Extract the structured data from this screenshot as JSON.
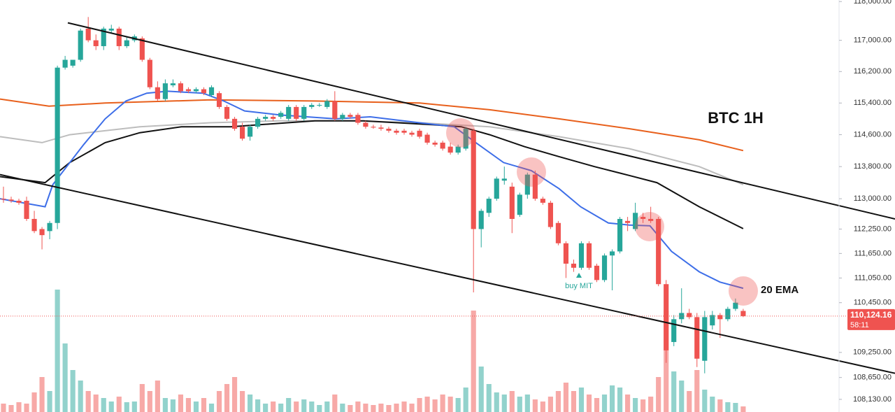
{
  "chart_data": {
    "type": "candlestick",
    "title": "BTC 1H",
    "log_scale": true,
    "ylim": [
      107830,
      118040
    ],
    "xlim": [
      -0.45,
      115.7
    ],
    "yticks": [
      {
        "value": 118000,
        "label": "118,000.00"
      },
      {
        "value": 117000,
        "label": "117,000.00"
      },
      {
        "value": 116200,
        "label": "116,200.00"
      },
      {
        "value": 115400,
        "label": "115,400.00"
      },
      {
        "value": 114600,
        "label": "114,600.00"
      },
      {
        "value": 113800,
        "label": "113,800.00"
      },
      {
        "value": 113000,
        "label": "113,000.00"
      },
      {
        "value": 112250,
        "label": "112,250.00"
      },
      {
        "value": 111650,
        "label": "111,650.00"
      },
      {
        "value": 111050,
        "label": "111,050.00"
      },
      {
        "value": 110450,
        "label": "110,450.00"
      },
      {
        "value": 109250,
        "label": "109,250.00"
      },
      {
        "value": 108650,
        "label": "108,650.00"
      },
      {
        "value": 108130,
        "label": "108,130.00"
      }
    ],
    "up_color": "#26a69a",
    "down_color": "#ef5350",
    "candles": {
      "open": [
        113000,
        112980,
        112950,
        112950,
        112500,
        112250,
        112200,
        112400,
        116300,
        116350,
        116500,
        117300,
        117000,
        116850,
        117250,
        117300,
        116850,
        117000,
        117050,
        116500,
        115800,
        115500,
        115850,
        115900,
        115750,
        115700,
        115750,
        115600,
        115650,
        115300,
        115000,
        114800,
        114550,
        114800,
        115000,
        115050,
        115050,
        115000,
        115300,
        115000,
        115300,
        115350,
        115300,
        115450,
        115000,
        115100,
        115100,
        114900,
        114800,
        114780,
        114750,
        114700,
        114700,
        114650,
        114700,
        114600,
        114400,
        114400,
        114300,
        114150,
        114250,
        114700,
        112250,
        112650,
        113000,
        113450,
        113300,
        112600,
        113100,
        113600,
        113000,
        112900,
        112400,
        111900,
        111400,
        111300,
        111900,
        111350,
        111000,
        111600,
        111700,
        112450,
        112250,
        112550,
        112500,
        112500,
        110900,
        109500,
        110050,
        110200,
        110100,
        109050,
        109900,
        110150,
        110050,
        110300,
        110250
      ],
      "high": [
        113300,
        113050,
        113000,
        113050,
        112700,
        112300,
        112450,
        116350,
        116600,
        116500,
        117300,
        117600,
        117150,
        117350,
        117400,
        117350,
        117100,
        117150,
        117100,
        116550,
        115950,
        116000,
        116000,
        115950,
        115800,
        115800,
        115800,
        115850,
        115700,
        115350,
        115050,
        114900,
        114850,
        115050,
        115100,
        115100,
        115200,
        115350,
        115350,
        115350,
        115400,
        115400,
        115500,
        115700,
        115150,
        115150,
        115150,
        114950,
        114850,
        114850,
        114800,
        114750,
        114750,
        114700,
        114750,
        114650,
        114450,
        114450,
        114400,
        114350,
        114800,
        114750,
        112750,
        113050,
        113550,
        113800,
        113400,
        113150,
        113650,
        113700,
        113050,
        112950,
        112450,
        111950,
        111500,
        111950,
        111950,
        111400,
        111650,
        111750,
        112550,
        112550,
        112900,
        112650,
        112800,
        112550,
        111000,
        110150,
        110800,
        110300,
        110200,
        110250,
        110250,
        110200,
        110350,
        110550,
        110300
      ],
      "low": [
        112900,
        112900,
        112850,
        112450,
        112150,
        111750,
        112000,
        112250,
        116250,
        116300,
        116450,
        116950,
        116750,
        116750,
        117200,
        116750,
        116800,
        116950,
        116450,
        115750,
        115450,
        115450,
        115800,
        115650,
        115650,
        115650,
        115600,
        115550,
        115250,
        114950,
        114700,
        114450,
        114450,
        114750,
        114950,
        114950,
        115000,
        114950,
        114950,
        114950,
        115250,
        115300,
        115250,
        114950,
        114950,
        115000,
        114850,
        114750,
        114750,
        114700,
        114650,
        114600,
        114600,
        114550,
        114500,
        114350,
        114300,
        114200,
        114100,
        114100,
        114200,
        110700,
        111800,
        112550,
        112950,
        113350,
        112150,
        112550,
        113000,
        112950,
        112850,
        112250,
        111850,
        111050,
        111200,
        111250,
        111250,
        110950,
        110950,
        110750,
        111650,
        112200,
        112200,
        112400,
        112400,
        110850,
        109000,
        109400,
        109950,
        110050,
        108900,
        108750,
        109800,
        109600,
        110000,
        110250,
        110100
      ],
      "close": [
        112980,
        112950,
        112900,
        112500,
        112200,
        112100,
        112400,
        116300,
        116500,
        116500,
        117250,
        117000,
        116850,
        117300,
        117300,
        116850,
        117000,
        117100,
        116500,
        115800,
        115500,
        115900,
        115900,
        115700,
        115700,
        115750,
        115650,
        115800,
        115300,
        115000,
        114750,
        114500,
        114800,
        115000,
        115050,
        115000,
        115150,
        115300,
        115000,
        115300,
        115350,
        115350,
        115450,
        115000,
        115100,
        115050,
        114900,
        114800,
        114780,
        114750,
        114700,
        114650,
        114650,
        114600,
        114550,
        114400,
        114350,
        114250,
        114150,
        114300,
        114750,
        112250,
        112700,
        113000,
        113500,
        113500,
        112500,
        113100,
        113600,
        113000,
        112900,
        112300,
        111900,
        111400,
        111300,
        111900,
        111300,
        111000,
        111600,
        111700,
        112500,
        112400,
        112650,
        112500,
        112450,
        110900,
        109300,
        110050,
        110200,
        110100,
        109100,
        110100,
        110150,
        110050,
        110300,
        110450,
        110124.16
      ],
      "volume": [
        12,
        10,
        14,
        12,
        28,
        50,
        30,
        175,
        98,
        60,
        45,
        30,
        25,
        20,
        15,
        22,
        14,
        15,
        40,
        30,
        45,
        20,
        18,
        25,
        20,
        15,
        20,
        12,
        30,
        40,
        50,
        30,
        25,
        18,
        12,
        15,
        12,
        20,
        15,
        18,
        15,
        10,
        15,
        25,
        12,
        10,
        15,
        12,
        10,
        12,
        10,
        12,
        15,
        12,
        20,
        22,
        18,
        25,
        22,
        20,
        35,
        145,
        65,
        40,
        28,
        25,
        30,
        22,
        25,
        18,
        15,
        22,
        30,
        42,
        30,
        35,
        25,
        20,
        25,
        38,
        35,
        25,
        20,
        18,
        22,
        50,
        145,
        58,
        45,
        30,
        60,
        32,
        22,
        18,
        14,
        13,
        8
      ]
    },
    "lines": [
      {
        "color": "#e8601c",
        "x": [
          -0.45,
          5.9,
          13.2,
          26.8,
          40.4,
          54.0,
          63.1,
          72.1,
          81.2,
          90.3,
          96.0
        ],
        "values": [
          115500,
          115320,
          115400,
          115480,
          115450,
          115400,
          115230,
          115000,
          114750,
          114470,
          114200
        ]
      },
      {
        "color": "#bdbdbd",
        "x": [
          -0.45,
          5.0,
          8.6,
          17.7,
          26.8,
          35.8,
          44.9,
          54.0,
          63.1,
          72.1,
          81.2,
          90.3,
          96.0
        ],
        "values": [
          114550,
          114400,
          114600,
          114800,
          114900,
          114950,
          114950,
          114900,
          114800,
          114550,
          114250,
          113800,
          113350
        ]
      },
      {
        "color": "#111111",
        "x": [
          -0.45,
          5.4,
          8.6,
          13.2,
          17.7,
          23.1,
          29.5,
          40.4,
          46.7,
          55.8,
          59.4,
          63.1,
          67.6,
          72.1,
          76.7,
          81.2,
          84.8,
          90.3,
          96.0
        ],
        "values": [
          113550,
          113400,
          113900,
          114400,
          114650,
          114800,
          114800,
          114950,
          114950,
          114850,
          114800,
          114600,
          114300,
          114050,
          113800,
          113580,
          113400,
          112800,
          112260
        ]
      },
      {
        "color": "#3d6ee8",
        "x": [
          -0.45,
          5.4,
          6.4,
          10.4,
          13.2,
          15.9,
          18.6,
          21.3,
          25.9,
          28.6,
          31.3,
          35.8,
          43.1,
          47.6,
          54.0,
          58.5,
          61.3,
          64.9,
          68.5,
          72.1,
          74.9,
          78.5,
          81.2,
          83.9,
          86.7,
          90.3,
          93.0,
          96.0
        ],
        "values": [
          113000,
          112800,
          113350,
          114350,
          115000,
          115450,
          115650,
          115700,
          115650,
          115450,
          115200,
          115100,
          115000,
          115050,
          114900,
          114800,
          114400,
          113900,
          113700,
          113250,
          112800,
          112400,
          112350,
          112330,
          111700,
          111200,
          110950,
          110800
        ]
      }
    ],
    "trendlines": [
      {
        "color": "#111111",
        "x": [
          8.35,
          115.7
        ],
        "values": [
          117450,
          112500
        ]
      },
      {
        "color": "#111111",
        "x": [
          -0.45,
          115.7
        ],
        "values": [
          113600,
          108750
        ]
      }
    ],
    "current_price": {
      "value": 110124.16,
      "label": "110,124.16"
    },
    "countdown": "58:11",
    "annotations": [
      "20 EMA",
      "buy MIT"
    ]
  }
}
